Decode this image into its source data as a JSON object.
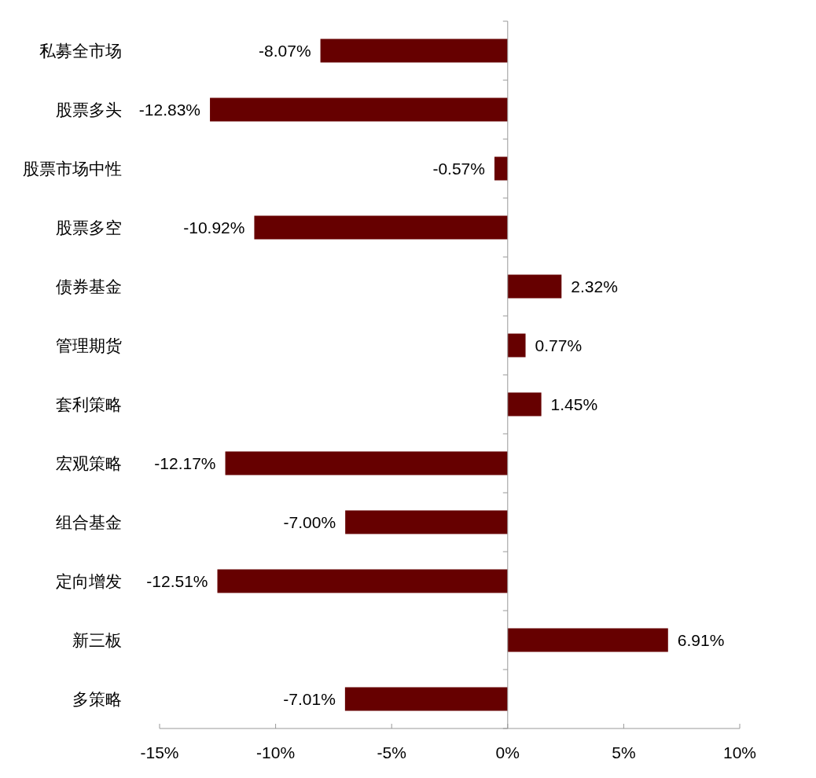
{
  "chart_data": {
    "type": "bar",
    "orientation": "horizontal",
    "categories": [
      "私募全市场",
      "股票多头",
      "股票市场中性",
      "股票多空",
      "债券基金",
      "管理期货",
      "套利策略",
      "宏观策略",
      "组合基金",
      "定向增发",
      "新三板",
      "多策略"
    ],
    "values": [
      -8.07,
      -12.83,
      -0.57,
      -10.92,
      2.32,
      0.77,
      1.45,
      -12.17,
      -7.0,
      -12.51,
      6.91,
      -7.01
    ],
    "value_labels": [
      "-8.07%",
      "-12.83%",
      "-0.57%",
      "-10.92%",
      "2.32%",
      "0.77%",
      "1.45%",
      "-12.17%",
      "-7.00%",
      "-12.51%",
      "6.91%",
      "-7.01%"
    ],
    "color": "#660000",
    "xlim": [
      -15,
      10
    ],
    "xticks": [
      {
        "value": -15,
        "label": "-15%"
      },
      {
        "value": -10,
        "label": "-10%"
      },
      {
        "value": -5,
        "label": "-5%"
      },
      {
        "value": 0,
        "label": "0%"
      },
      {
        "value": 5,
        "label": "5%"
      },
      {
        "value": 10,
        "label": "10%"
      }
    ]
  }
}
